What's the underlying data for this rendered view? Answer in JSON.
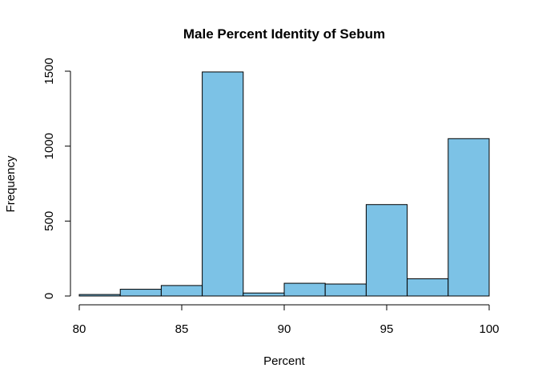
{
  "chart_data": {
    "type": "bar",
    "title": "Male Percent Identity of Sebum",
    "xlabel": "Percent",
    "ylabel": "Frequency",
    "bins": [
      {
        "x0": 80,
        "x1": 82,
        "count": 10
      },
      {
        "x0": 82,
        "x1": 84,
        "count": 45
      },
      {
        "x0": 84,
        "x1": 86,
        "count": 70
      },
      {
        "x0": 86,
        "x1": 88,
        "count": 1495
      },
      {
        "x0": 88,
        "x1": 90,
        "count": 20
      },
      {
        "x0": 90,
        "x1": 92,
        "count": 85
      },
      {
        "x0": 92,
        "x1": 94,
        "count": 80
      },
      {
        "x0": 94,
        "x1": 96,
        "count": 610
      },
      {
        "x0": 96,
        "x1": 98,
        "count": 115
      },
      {
        "x0": 98,
        "x1": 100,
        "count": 1050
      }
    ],
    "xlim": [
      80,
      100
    ],
    "ylim": [
      0,
      1500
    ],
    "x_ticks": [
      "80",
      "85",
      "90",
      "95",
      "100"
    ],
    "y_ticks": [
      "0",
      "500",
      "1000",
      "1500"
    ],
    "grid": false,
    "bar_color": "#7CC2E6"
  }
}
